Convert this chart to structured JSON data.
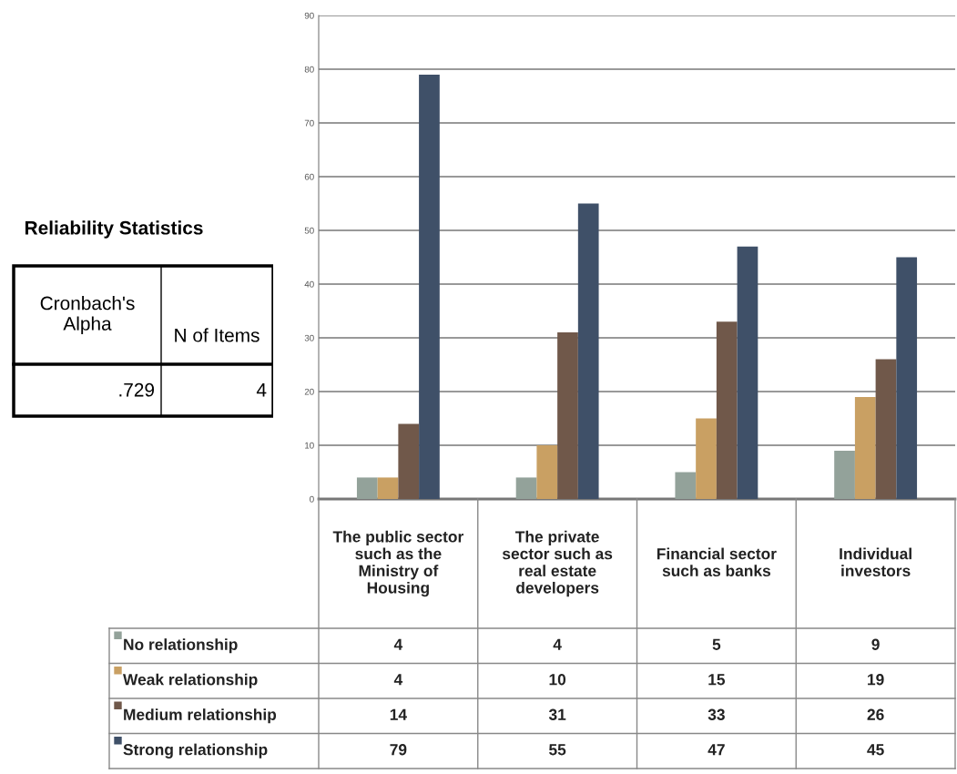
{
  "chart_data": [
    {
      "type": "other",
      "title": "Reliability Statistics",
      "annotations": [
        "Cronbach's Alpha",
        "N of Items",
        ".729",
        "4"
      ]
    },
    {
      "type": "bar",
      "categories": [
        "The public sector such as the Ministry of Housing",
        "The private sector such as real estate developers",
        "Financial sector such as banks",
        "Individual investors"
      ],
      "series": [
        {
          "name": "No relationship",
          "color": "#93a29a",
          "values": [
            4,
            4,
            5,
            9
          ]
        },
        {
          "name": "Weak relationship",
          "color": "#c9a063",
          "values": [
            4,
            10,
            15,
            19
          ]
        },
        {
          "name": "Medium relationship",
          "color": "#70584a",
          "values": [
            14,
            31,
            33,
            26
          ]
        },
        {
          "name": "Strong relationship",
          "color": "#3f5068",
          "values": [
            79,
            55,
            47,
            45
          ]
        }
      ],
      "ylim": [
        0,
        90
      ],
      "yticks": [
        0,
        10,
        20,
        30,
        40,
        50,
        60,
        70,
        80,
        90
      ],
      "grid": "y",
      "legend": "bottom",
      "data_labels": true
    }
  ]
}
